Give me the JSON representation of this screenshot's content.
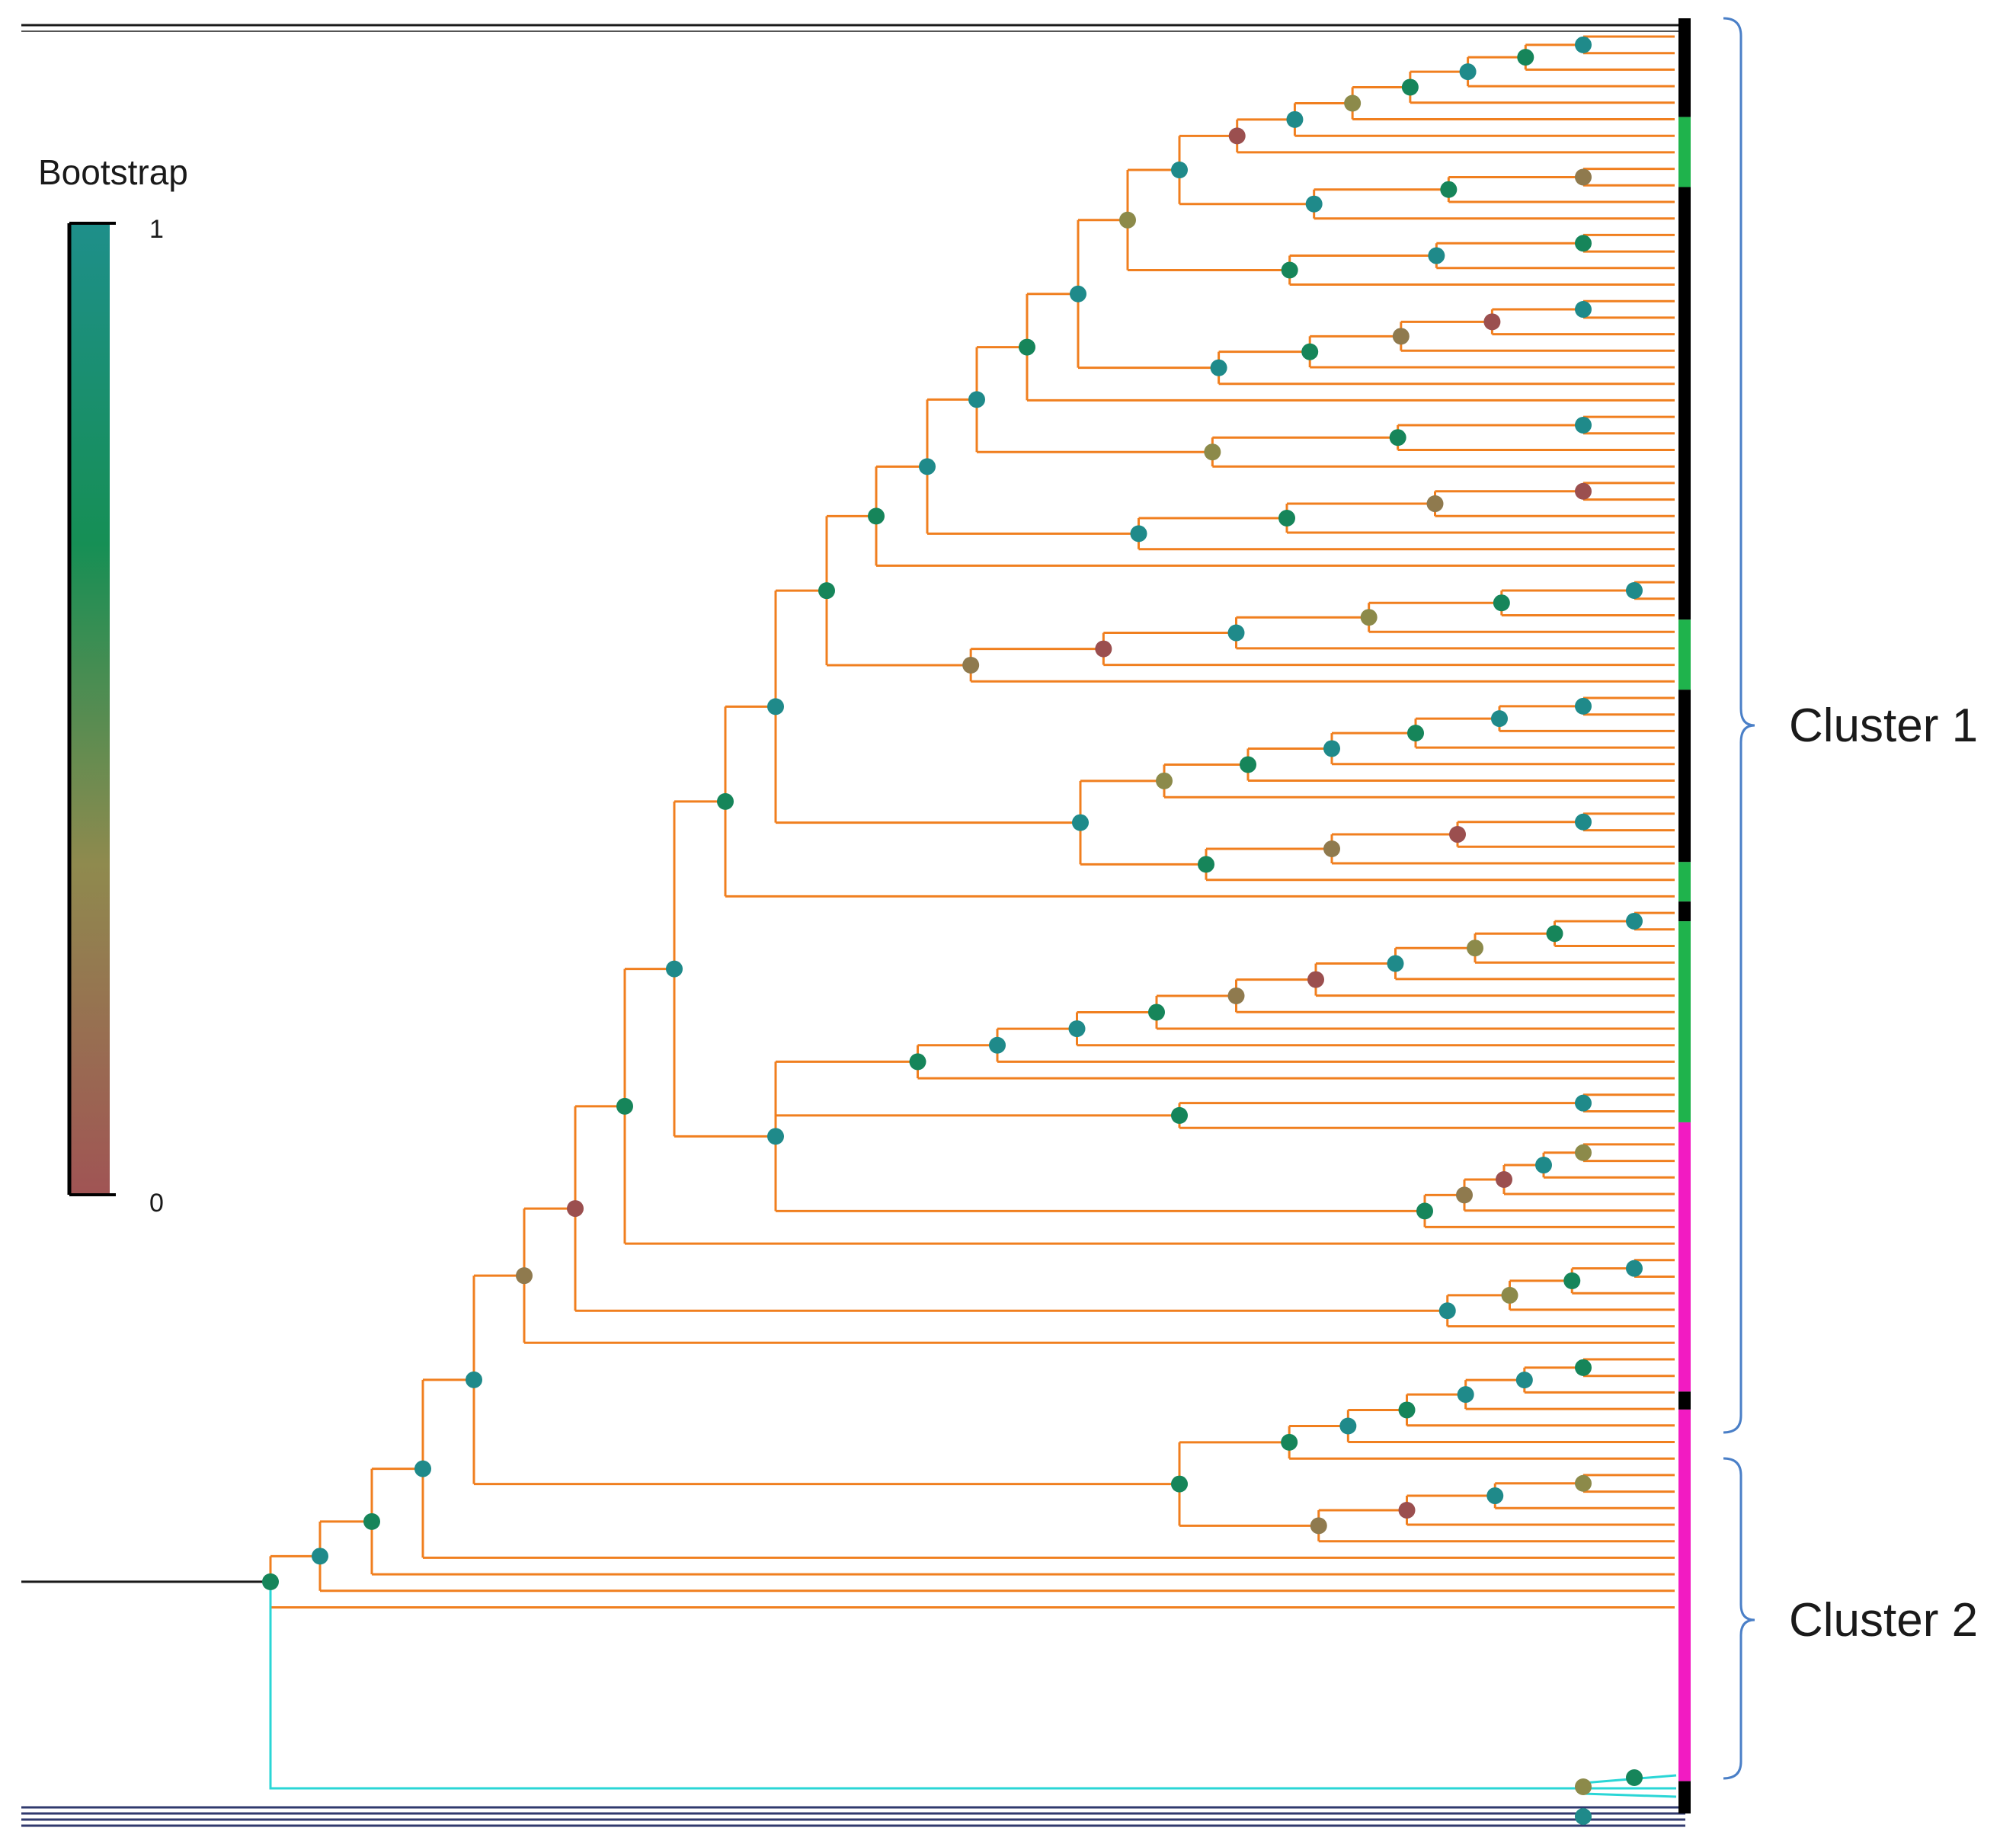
{
  "legend": {
    "title": "Bootstrap",
    "max_label": "1",
    "min_label": "0",
    "gradient": [
      "#1e8f8a",
      "#168f55",
      "#8f8a4e",
      "#a05454"
    ]
  },
  "clusters": [
    {
      "label": "Cluster 1",
      "bracket_color": "#4a7fc7"
    },
    {
      "label": "Cluster 2",
      "bracket_color": "#4a7fc7"
    }
  ],
  "colors": {
    "branch": "#f07f1f",
    "outgroup_branch": "#1a1a1a",
    "cyan_branch": "#2ad6d6",
    "navy_branch": "#303a6e",
    "strip_black": "#000000",
    "strip_green": "#1fb34c",
    "strip_magenta": "#f21bc2",
    "node_teal": "#1f8a8a",
    "node_green": "#16855a",
    "node_olive": "#8c8a4a",
    "node_brown": "#8f7a4e",
    "node_red": "#9b4f4f"
  },
  "bootstrap_scale": {
    "min": 0,
    "max": 1
  },
  "strip_segments": [
    {
      "group": "black",
      "from": 0.0,
      "to": 0.055
    },
    {
      "group": "green",
      "from": 0.055,
      "to": 0.094
    },
    {
      "group": "black",
      "from": 0.094,
      "to": 0.335
    },
    {
      "group": "green",
      "from": 0.335,
      "to": 0.374
    },
    {
      "group": "black",
      "from": 0.374,
      "to": 0.47
    },
    {
      "group": "green",
      "from": 0.47,
      "to": 0.492
    },
    {
      "group": "black",
      "from": 0.492,
      "to": 0.503
    },
    {
      "group": "green",
      "from": 0.503,
      "to": 0.615
    },
    {
      "group": "magenta",
      "from": 0.615,
      "to": 0.765
    },
    {
      "group": "black",
      "from": 0.765,
      "to": 0.775
    },
    {
      "group": "magenta",
      "from": 0.775,
      "to": 0.982
    },
    {
      "group": "black",
      "from": 0.982,
      "to": 1.0
    }
  ]
}
